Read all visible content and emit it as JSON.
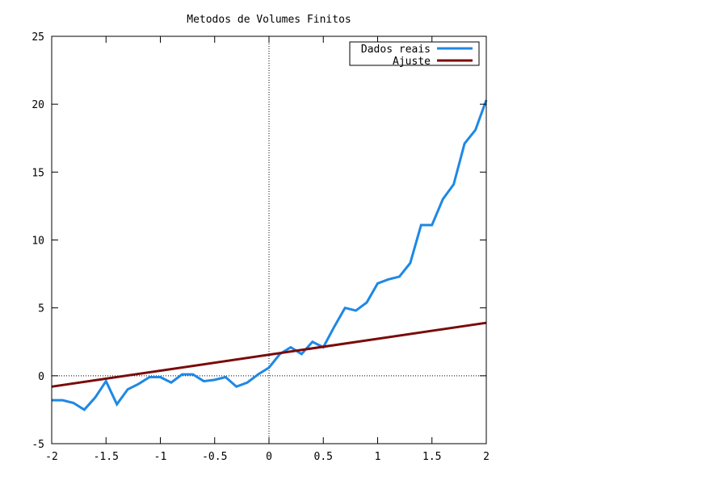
{
  "chart_data": {
    "type": "line",
    "title": "Metodos de Volumes Finitos",
    "xlabel": "",
    "ylabel": "",
    "xlim": [
      -2,
      2
    ],
    "ylim": [
      -5,
      25
    ],
    "xticks": [
      -2,
      -1.5,
      -1,
      -0.5,
      0,
      0.5,
      1,
      1.5,
      2
    ],
    "xtick_labels": [
      "-2",
      "-1.5",
      "-1",
      "-0.5",
      "0",
      "0.5",
      "1",
      "1.5",
      "2"
    ],
    "yticks": [
      -5,
      0,
      5,
      10,
      15,
      20,
      25
    ],
    "ytick_labels": [
      "-5",
      "0",
      "5",
      "10",
      "15",
      "20",
      "25"
    ],
    "zero_axes": true,
    "grid": false,
    "legend_position": "top-right",
    "series": [
      {
        "name": "Dados reais",
        "color": "#1e88e5",
        "x": [
          -2.0,
          -1.9,
          -1.8,
          -1.7,
          -1.6,
          -1.5,
          -1.4,
          -1.3,
          -1.2,
          -1.1,
          -1.0,
          -0.9,
          -0.8,
          -0.7,
          -0.6,
          -0.5,
          -0.4,
          -0.3,
          -0.2,
          -0.1,
          0.0,
          0.1,
          0.2,
          0.3,
          0.4,
          0.5,
          0.6,
          0.7,
          0.8,
          0.9,
          1.0,
          1.1,
          1.2,
          1.3,
          1.4,
          1.5,
          1.6,
          1.7,
          1.8,
          1.9,
          2.0
        ],
        "y": [
          -1.8,
          -1.8,
          -2.0,
          -2.5,
          -1.6,
          -0.4,
          -2.1,
          -1.0,
          -0.6,
          -0.1,
          -0.1,
          -0.5,
          0.1,
          0.1,
          -0.4,
          -0.3,
          -0.1,
          -0.8,
          -0.5,
          0.1,
          0.6,
          1.6,
          2.1,
          1.6,
          2.5,
          2.1,
          3.6,
          5.0,
          4.8,
          5.4,
          6.8,
          7.1,
          7.3,
          8.3,
          11.1,
          11.1,
          13.0,
          14.1,
          17.1,
          18.1,
          20.3
        ]
      },
      {
        "name": "Ajuste",
        "color": "#7a0a0a",
        "x": [
          -2.0,
          2.0
        ],
        "y": [
          -0.8,
          3.9
        ]
      }
    ]
  }
}
